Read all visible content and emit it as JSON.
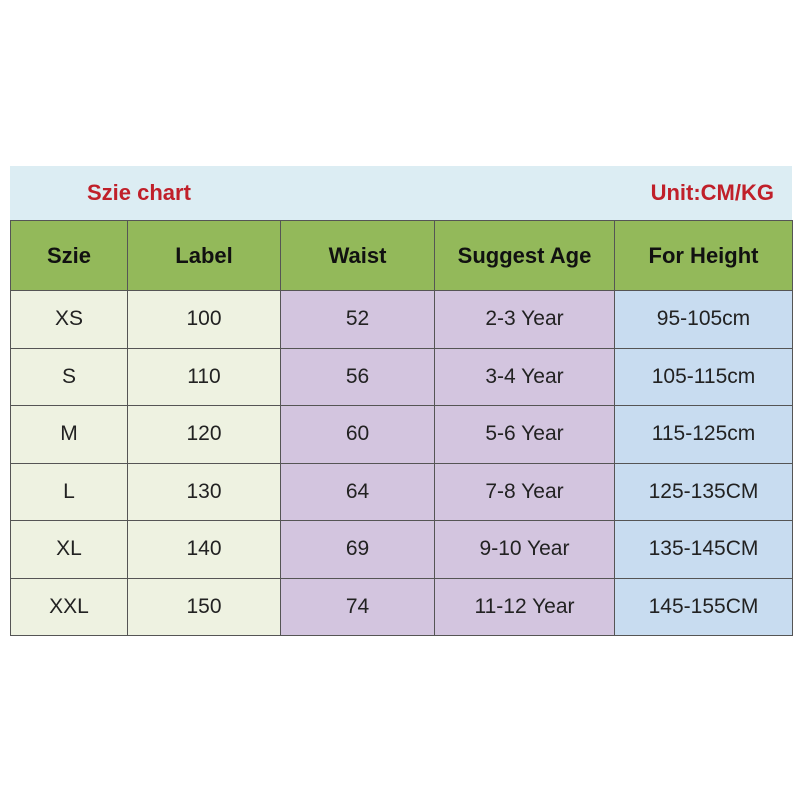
{
  "title": "Szie chart",
  "unit": "Unit:CM/KG",
  "colors": {
    "header": "#93b95a",
    "banner": "#dcedf3",
    "title": "#c0202a",
    "col_size_label": "#eef2e1",
    "col_waist_age": "#d3c5df",
    "col_height": "#c8dcf0"
  },
  "columns": [
    "Szie",
    "Label",
    "Waist",
    "Suggest Age",
    "For Height"
  ],
  "rows": [
    [
      "XS",
      "100",
      "52",
      "2-3 Year",
      "95-105cm"
    ],
    [
      "S",
      "110",
      "56",
      "3-4 Year",
      "105-115cm"
    ],
    [
      "M",
      "120",
      "60",
      "5-6 Year",
      "115-125cm"
    ],
    [
      "L",
      "130",
      "64",
      "7-8 Year",
      "125-135CM"
    ],
    [
      "XL",
      "140",
      "69",
      "9-10 Year",
      "135-145CM"
    ],
    [
      "XXL",
      "150",
      "74",
      "11-12 Year",
      "145-155CM"
    ]
  ]
}
